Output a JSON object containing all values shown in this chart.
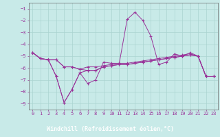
{
  "background_color": "#c8eae8",
  "grid_color": "#aad4d0",
  "line_color": "#993399",
  "xlabel": "Windchill (Refroidissement éolien,°C)",
  "xlabel_bg": "#993399",
  "xlabel_fg": "#ffffff",
  "x": [
    0,
    1,
    2,
    3,
    4,
    5,
    6,
    7,
    8,
    9,
    10,
    11,
    12,
    13,
    14,
    15,
    16,
    17,
    18,
    19,
    20,
    21,
    22,
    23
  ],
  "line1": [
    -4.7,
    -5.2,
    -5.3,
    -5.3,
    -5.9,
    -5.9,
    -6.1,
    -5.9,
    -5.9,
    -5.8,
    -5.7,
    -5.6,
    -5.6,
    -5.5,
    -5.4,
    -5.3,
    -5.2,
    -5.1,
    -5.0,
    -4.9,
    -4.8,
    -5.0,
    -6.7,
    -6.7
  ],
  "line2": [
    -4.7,
    -5.2,
    -5.3,
    -6.7,
    -8.9,
    -7.8,
    -6.4,
    -7.3,
    -7.0,
    -5.5,
    -5.6,
    -5.6,
    -1.9,
    -1.3,
    -2.0,
    -3.3,
    -5.7,
    -5.5,
    -4.8,
    -5.0,
    -4.7,
    -5.0,
    -6.7,
    -6.7
  ],
  "line3": [
    -4.7,
    -5.2,
    -5.3,
    -6.7,
    -8.9,
    -7.8,
    -6.4,
    -6.2,
    -6.2,
    -5.9,
    -5.8,
    -5.7,
    -5.7,
    -5.6,
    -5.5,
    -5.4,
    -5.3,
    -5.2,
    -5.1,
    -5.0,
    -4.9,
    -5.0,
    -6.7,
    -6.7
  ],
  "line4": [
    -4.7,
    -5.2,
    -5.3,
    -5.3,
    -5.9,
    -5.9,
    -6.1,
    -6.2,
    -6.2,
    -5.9,
    -5.8,
    -5.7,
    -5.7,
    -5.6,
    -5.5,
    -5.4,
    -5.3,
    -5.2,
    -5.1,
    -5.0,
    -4.9,
    -5.0,
    -6.7,
    -6.7
  ],
  "ylim": [
    -9.5,
    -0.5
  ],
  "yticks": [
    -1,
    -2,
    -3,
    -4,
    -5,
    -6,
    -7,
    -8,
    -9
  ],
  "xticks": [
    0,
    1,
    2,
    3,
    4,
    5,
    6,
    7,
    8,
    9,
    10,
    11,
    12,
    13,
    14,
    15,
    16,
    17,
    18,
    19,
    20,
    21,
    22,
    23
  ]
}
